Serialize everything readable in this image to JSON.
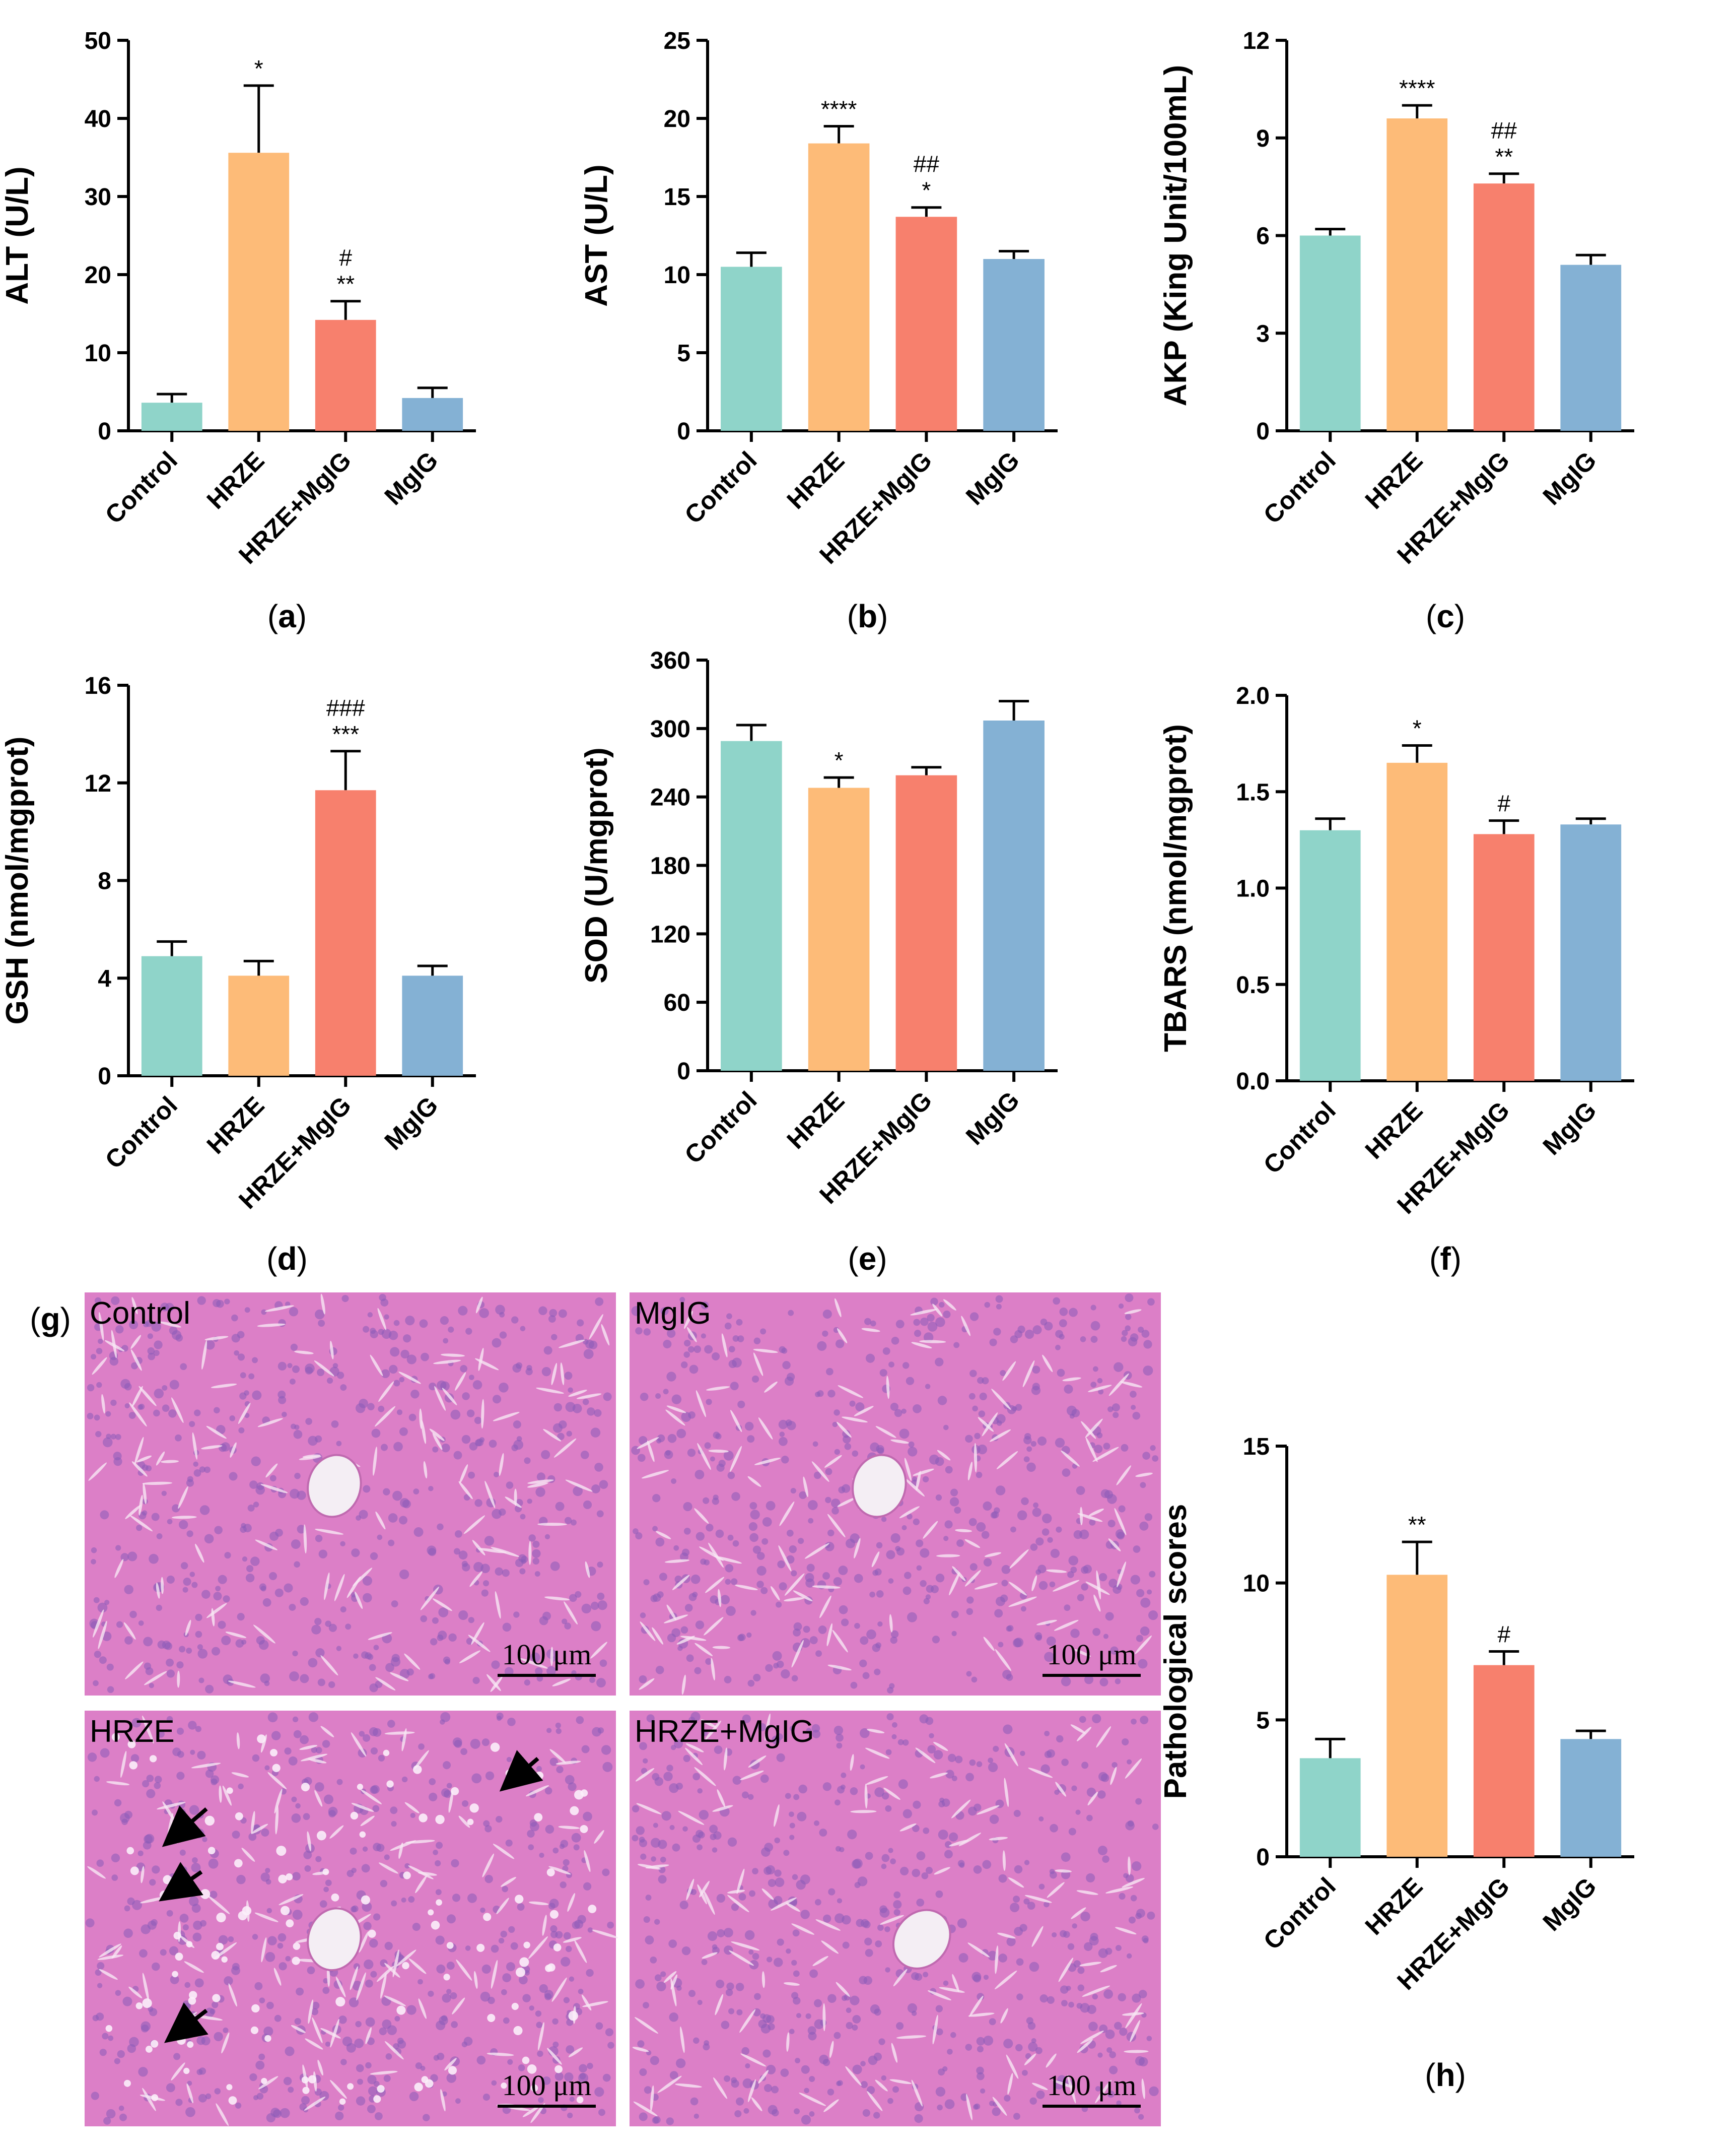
{
  "colors": {
    "Control": "#8fd4c9",
    "HRZE": "#fdbb78",
    "HRZE+MgIG": "#f7806d",
    "MgIG": "#84b1d4",
    "tissue_base": "#dc7fc7",
    "nucleus": "#8a5bb8"
  },
  "chart_data": [
    {
      "panel": "a",
      "type": "bar",
      "ylabel": "ALT (U/L)",
      "ylim": [
        0,
        50
      ],
      "yticks": [
        0,
        10,
        20,
        30,
        40,
        50
      ],
      "categories": [
        "Control",
        "HRZE",
        "HRZE+MgIG",
        "MgIG"
      ],
      "values": [
        3.6,
        35.6,
        14.2,
        4.2
      ],
      "errors": [
        1.1,
        8.6,
        2.4,
        1.3
      ],
      "annotations": [
        [],
        [
          "*"
        ],
        [
          "#",
          "**"
        ],
        []
      ],
      "caption": [
        "(",
        "a",
        ")"
      ]
    },
    {
      "panel": "b",
      "type": "bar",
      "ylabel": "AST (U/L)",
      "ylim": [
        0,
        25
      ],
      "yticks": [
        0,
        5,
        10,
        15,
        20,
        25
      ],
      "categories": [
        "Control",
        "HRZE",
        "HRZE+MgIG",
        "MgIG"
      ],
      "values": [
        10.5,
        18.4,
        13.7,
        11.0
      ],
      "errors": [
        0.9,
        1.1,
        0.6,
        0.5
      ],
      "annotations": [
        [],
        [
          "****"
        ],
        [
          "##",
          "*"
        ],
        []
      ],
      "caption": [
        "(",
        "b",
        ")"
      ]
    },
    {
      "panel": "c",
      "type": "bar",
      "ylabel": "AKP (King Unit/100mL)",
      "ylim": [
        0,
        12
      ],
      "yticks": [
        0,
        3,
        6,
        9,
        12
      ],
      "categories": [
        "Control",
        "HRZE",
        "HRZE+MgIG",
        "MgIG"
      ],
      "values": [
        6.0,
        9.6,
        7.6,
        5.1
      ],
      "errors": [
        0.2,
        0.4,
        0.3,
        0.3
      ],
      "annotations": [
        [],
        [
          "****"
        ],
        [
          "##",
          "**"
        ],
        []
      ],
      "caption": [
        "(",
        "c",
        ")"
      ]
    },
    {
      "panel": "d",
      "type": "bar",
      "ylabel": "GSH (nmol/mgprot)",
      "ylim": [
        0,
        16
      ],
      "yticks": [
        0,
        4,
        8,
        12,
        16
      ],
      "categories": [
        "Control",
        "HRZE",
        "HRZE+MgIG",
        "MgIG"
      ],
      "values": [
        4.9,
        4.1,
        11.7,
        4.1
      ],
      "errors": [
        0.6,
        0.6,
        1.6,
        0.4
      ],
      "annotations": [
        [],
        [],
        [
          "###",
          "***"
        ],
        []
      ],
      "caption": [
        "(",
        "d",
        ")"
      ]
    },
    {
      "panel": "e",
      "type": "bar",
      "ylabel": "SOD (U/mgprot)",
      "ylim": [
        0,
        360
      ],
      "yticks": [
        0,
        60,
        120,
        180,
        240,
        300,
        360
      ],
      "categories": [
        "Control",
        "HRZE",
        "HRZE+MgIG",
        "MgIG"
      ],
      "values": [
        289,
        248,
        259,
        307
      ],
      "errors": [
        14,
        9,
        7,
        17
      ],
      "annotations": [
        [],
        [
          "*"
        ],
        [],
        []
      ],
      "caption": [
        "(",
        "e",
        ")"
      ]
    },
    {
      "panel": "f",
      "type": "bar",
      "ylabel": "TBARS (nmol/mgprot)",
      "ylim": [
        0,
        2.0
      ],
      "yticks": [
        "0.0",
        "0.5",
        "1.0",
        "1.5",
        "2.0"
      ],
      "categories": [
        "Control",
        "HRZE",
        "HRZE+MgIG",
        "MgIG"
      ],
      "values": [
        1.3,
        1.65,
        1.28,
        1.33
      ],
      "errors": [
        0.06,
        0.09,
        0.07,
        0.03
      ],
      "annotations": [
        [],
        [
          "*"
        ],
        [
          "#"
        ],
        []
      ],
      "caption": [
        "(",
        "f",
        ")"
      ]
    },
    {
      "panel": "h",
      "type": "bar",
      "ylabel": "Pathological scores",
      "ylim": [
        0,
        15
      ],
      "yticks": [
        0,
        5,
        10,
        15
      ],
      "categories": [
        "Control",
        "HRZE",
        "HRZE+MgIG",
        "MgIG"
      ],
      "values": [
        3.6,
        10.3,
        7.0,
        4.3
      ],
      "errors": [
        0.7,
        1.2,
        0.5,
        0.3
      ],
      "annotations": [
        [],
        [
          "**"
        ],
        [
          "#"
        ],
        []
      ],
      "caption": [
        "(",
        "h",
        ")"
      ]
    }
  ],
  "histology": {
    "panel_label": [
      "(",
      "g",
      ")"
    ],
    "scale_bar": "100 μm",
    "images": [
      {
        "label": "Control",
        "arrows": 0
      },
      {
        "label": "MgIG",
        "arrows": 0
      },
      {
        "label": "HRZE",
        "arrows": 4
      },
      {
        "label": "HRZE+MgIG",
        "arrows": 0
      }
    ]
  }
}
